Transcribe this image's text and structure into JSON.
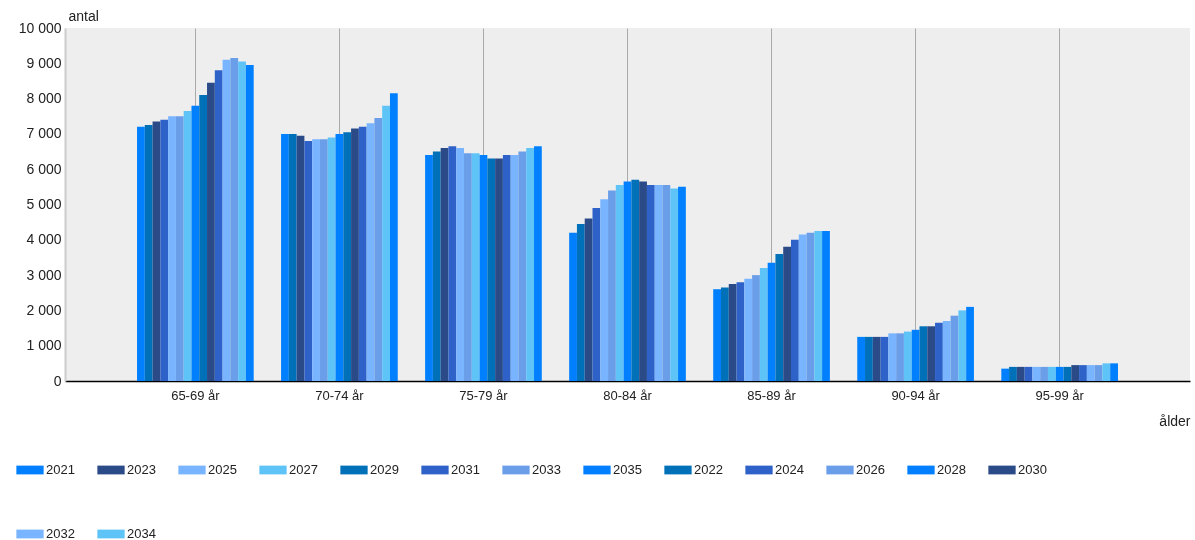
{
  "chart_data": {
    "type": "bar",
    "xlabel": "ålder",
    "ylabel": "antal",
    "legend": "bottom",
    "grid": "x",
    "categories": [
      "65-69 år",
      "70-74 år",
      "75-79 år",
      "80-84 år",
      "85-89 år",
      "90-94 år",
      "95-99 år"
    ],
    "ylim": [
      0,
      10000
    ],
    "yticks": [
      0,
      {
        "value": 1000,
        "label": "1 000"
      },
      {
        "value": 2000,
        "label": "2 000"
      },
      {
        "value": 3000,
        "label": "3 000"
      },
      {
        "value": 4000,
        "label": "4 000"
      },
      {
        "value": 5000,
        "label": "5 000"
      },
      {
        "value": 6000,
        "label": "6 000"
      },
      {
        "value": 7000,
        "label": "7 000"
      },
      {
        "value": 8000,
        "label": "8 000"
      },
      {
        "value": 9000,
        "label": "9 000"
      },
      {
        "value": 10000,
        "label": "10 000"
      }
    ],
    "series": [
      {
        "name": "2021",
        "color": "#0080ff",
        "values": [
          7200,
          7000,
          6400,
          4200,
          2600,
          1250,
          350
        ]
      },
      {
        "name": "2022",
        "color": "#0070b8",
        "values": [
          7250,
          7000,
          6500,
          4450,
          2650,
          1250,
          400
        ]
      },
      {
        "name": "2023",
        "color": "#2a4a88",
        "values": [
          7350,
          6950,
          6600,
          4600,
          2750,
          1250,
          400
        ]
      },
      {
        "name": "2024",
        "color": "#2e62c8",
        "values": [
          7400,
          6800,
          6650,
          4900,
          2800,
          1250,
          400
        ]
      },
      {
        "name": "2025",
        "color": "#78b4ff",
        "values": [
          7500,
          6850,
          6600,
          5150,
          2900,
          1350,
          400
        ]
      },
      {
        "name": "2026",
        "color": "#6a9ee8",
        "values": [
          7500,
          6850,
          6450,
          5400,
          3000,
          1350,
          400
        ]
      },
      {
        "name": "2027",
        "color": "#5ec4f8",
        "values": [
          7650,
          6900,
          6450,
          5550,
          3200,
          1400,
          400
        ]
      },
      {
        "name": "2028",
        "color": "#0080ff",
        "values": [
          7800,
          7000,
          6400,
          5650,
          3350,
          1450,
          400
        ]
      },
      {
        "name": "2029",
        "color": "#0070b8",
        "values": [
          8100,
          7050,
          6300,
          5700,
          3600,
          1550,
          400
        ]
      },
      {
        "name": "2030",
        "color": "#2a4a88",
        "values": [
          8450,
          7150,
          6300,
          5650,
          3800,
          1550,
          450
        ]
      },
      {
        "name": "2031",
        "color": "#2e62c8",
        "values": [
          8800,
          7200,
          6400,
          5550,
          4000,
          1650,
          450
        ]
      },
      {
        "name": "2032",
        "color": "#78b4ff",
        "values": [
          9100,
          7300,
          6400,
          5550,
          4150,
          1700,
          450
        ]
      },
      {
        "name": "2033",
        "color": "#6a9ee8",
        "values": [
          9150,
          7450,
          6500,
          5550,
          4200,
          1850,
          450
        ]
      },
      {
        "name": "2034",
        "color": "#5ec4f8",
        "values": [
          9050,
          7800,
          6600,
          5450,
          4250,
          2000,
          500
        ]
      },
      {
        "name": "2035",
        "color": "#0080ff",
        "values": [
          8950,
          8150,
          6650,
          5500,
          4250,
          2100,
          500
        ]
      }
    ]
  }
}
